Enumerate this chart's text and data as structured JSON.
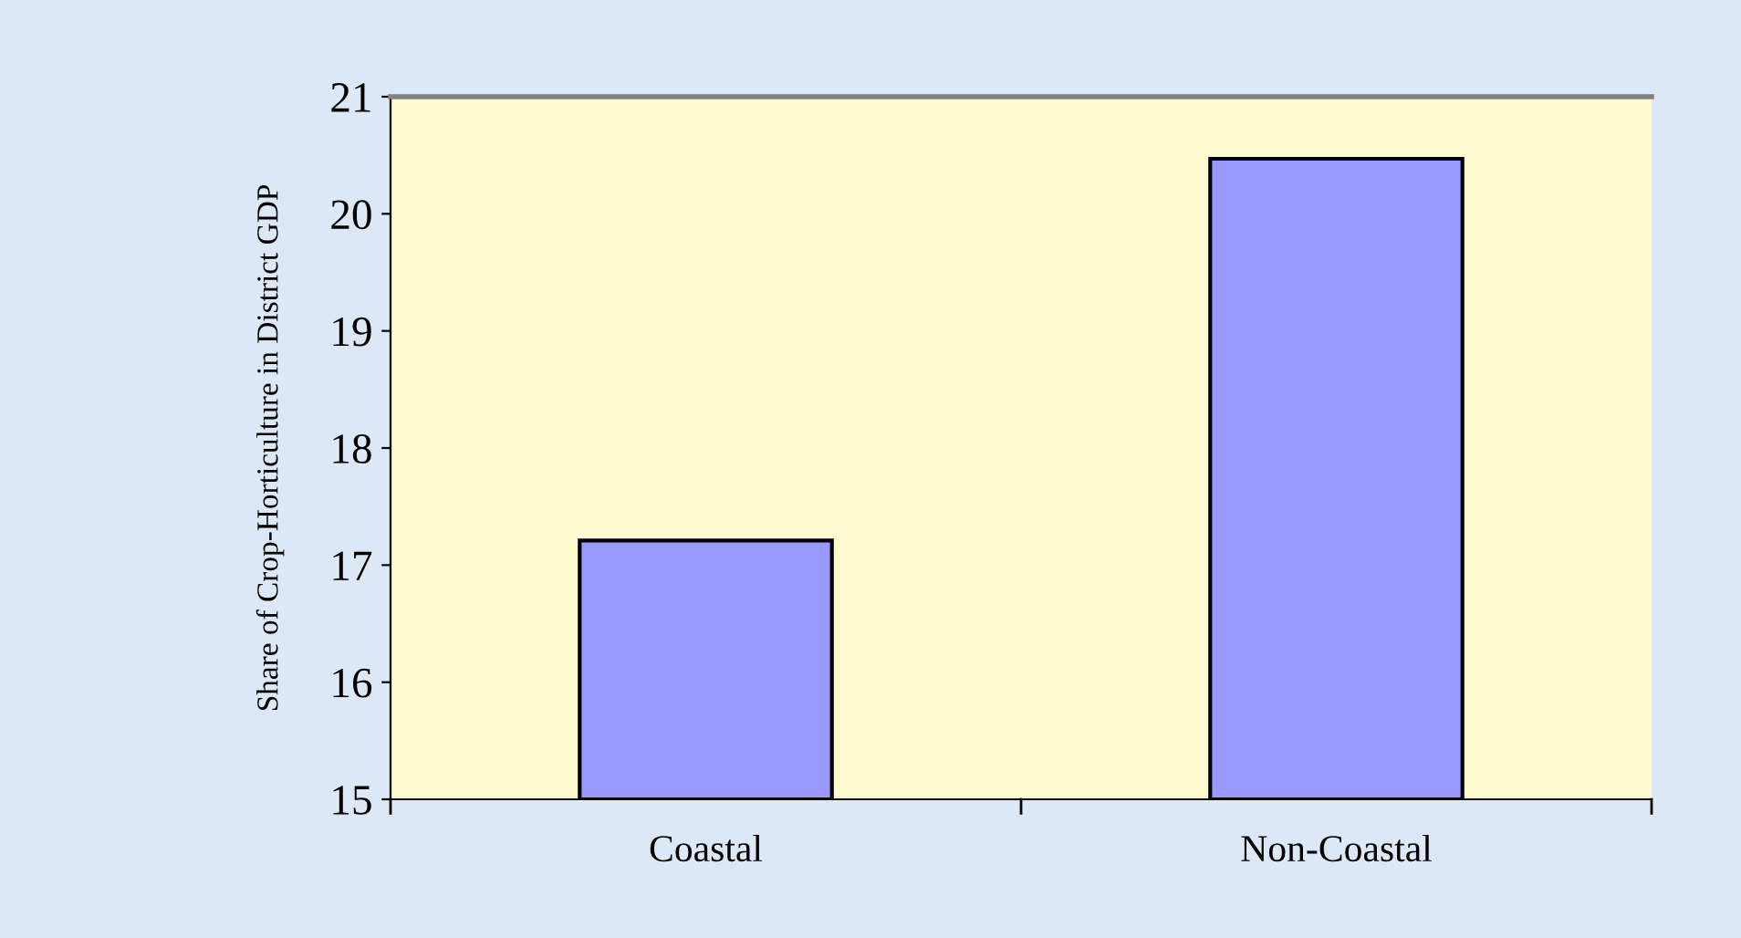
{
  "chart_data": {
    "type": "bar",
    "ylabel": "Share of Crop-Horticulture in District GDP",
    "categories": [
      "Coastal",
      "Non-Coastal"
    ],
    "values": [
      17.21,
      20.47
    ],
    "color": "#9999ff",
    "ylim": [
      15,
      21
    ],
    "yticks": [
      15,
      16,
      17,
      18,
      19,
      20,
      21
    ],
    "grid": false,
    "legend": false
  }
}
